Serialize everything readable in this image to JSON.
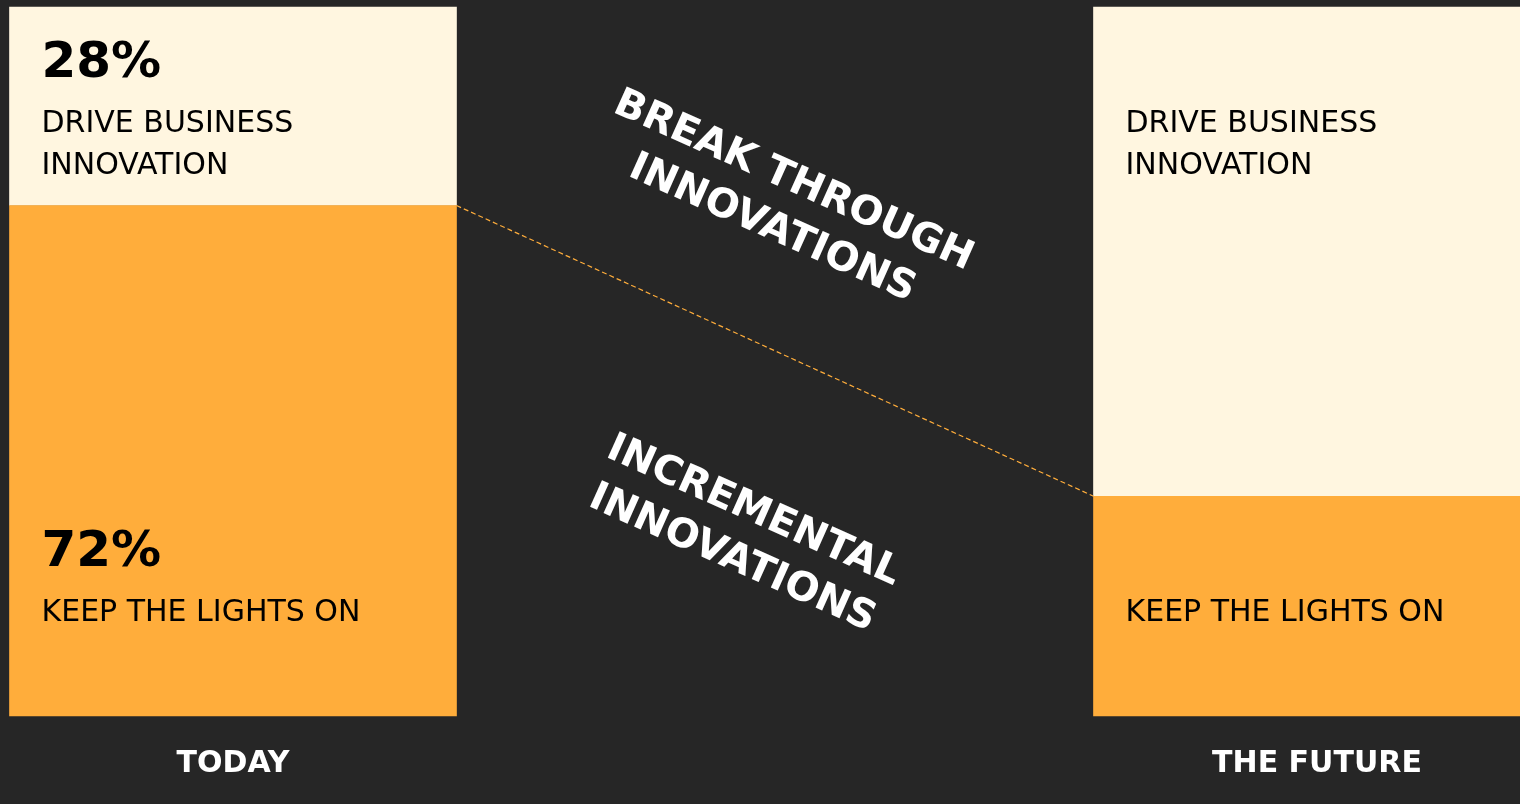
{
  "chart_data": {
    "type": "bar",
    "stacked": true,
    "categories": [
      "TODAY",
      "THE FUTURE"
    ],
    "ylim": [
      0,
      100
    ],
    "series": [
      {
        "name": "KEEP THE LIGHTS ON",
        "color": "#ffad3b",
        "values": [
          72,
          31
        ],
        "value_labels": [
          "72%",
          null
        ]
      },
      {
        "name": "DRIVE BUSINESS INNOVATION",
        "color": "#fff6e0",
        "values": [
          28,
          69
        ],
        "value_labels": [
          "28%",
          null
        ]
      }
    ],
    "annotations": [
      "BREAK THROUGH INNOVATIONS",
      "INCREMENTAL INNOVATIONS"
    ],
    "legend": false
  }
}
